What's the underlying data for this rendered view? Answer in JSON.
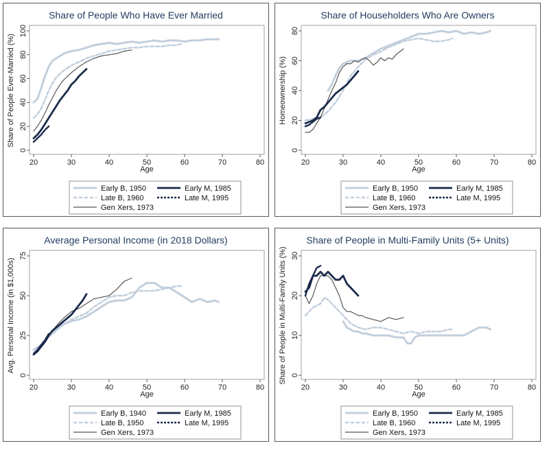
{
  "colors": {
    "light_blue": "#c2cfdc",
    "navy": "#1a2a4a",
    "dark_gray": "#555555"
  },
  "chart_data": [
    {
      "type": "line",
      "title": "Share of People Who Have Ever Married",
      "xlabel": "Age",
      "ylabel": "Share of People Ever-Married (%)",
      "xlim": [
        20,
        80
      ],
      "ylim": [
        0,
        100
      ],
      "xticks": [
        "20",
        "30",
        "40",
        "50",
        "60",
        "70",
        "80"
      ],
      "yticks": [
        "0",
        "20",
        "40",
        "60",
        "80",
        "100"
      ],
      "grid": false,
      "legend": "bottom",
      "series": [
        {
          "name": "Early B, 1950",
          "style": "thick-light",
          "x": [
            20,
            21,
            22,
            23,
            24,
            25,
            26,
            27,
            28,
            29,
            30,
            32,
            34,
            36,
            38,
            40,
            42,
            44,
            46,
            48,
            50,
            52,
            54,
            56,
            58,
            60,
            62,
            64,
            66,
            68,
            69
          ],
          "y": [
            40,
            43,
            52,
            62,
            70,
            75,
            77,
            79,
            81,
            82,
            83,
            84,
            86,
            88,
            89,
            90,
            89,
            90,
            91,
            90,
            91,
            92,
            91,
            92,
            92,
            91,
            92,
            92,
            93,
            93,
            93
          ]
        },
        {
          "name": "Late B, 1960",
          "style": "dashed-light",
          "x": [
            20,
            21,
            22,
            23,
            24,
            25,
            26,
            27,
            28,
            29,
            30,
            32,
            34,
            36,
            38,
            40,
            42,
            44,
            46,
            48,
            50,
            52,
            54,
            56,
            58,
            59
          ],
          "y": [
            27,
            30,
            35,
            42,
            50,
            56,
            61,
            64,
            67,
            69,
            71,
            74,
            77,
            79,
            81,
            83,
            84,
            85,
            86,
            86,
            87,
            87,
            87,
            88,
            88,
            89
          ]
        },
        {
          "name": "Gen Xers, 1973",
          "style": "thin-dark",
          "x": [
            20,
            21,
            22,
            23,
            24,
            25,
            26,
            27,
            28,
            29,
            30,
            32,
            34,
            36,
            38,
            40,
            42,
            44,
            46
          ],
          "y": [
            16,
            20,
            25,
            31,
            38,
            44,
            50,
            55,
            59,
            62,
            65,
            70,
            74,
            77,
            79,
            80,
            81,
            83,
            84
          ]
        },
        {
          "name": "Early M, 1985",
          "style": "thick-navy",
          "x": [
            20,
            21,
            22,
            23,
            24,
            25,
            26,
            27,
            28,
            29,
            30,
            31,
            32,
            33,
            34
          ],
          "y": [
            10,
            13,
            17,
            22,
            27,
            32,
            37,
            42,
            46,
            50,
            55,
            58,
            62,
            65,
            68
          ]
        },
        {
          "name": "Late M, 1995",
          "style": "dashed-navy",
          "x": [
            20,
            21,
            22,
            23,
            24
          ],
          "y": [
            7,
            10,
            13,
            17,
            20
          ]
        }
      ]
    },
    {
      "type": "line",
      "title": "Share of Householders Who Are Owners",
      "xlabel": "Age",
      "ylabel": "Homeownership (%)",
      "xlim": [
        20,
        80
      ],
      "ylim": [
        0,
        80
      ],
      "xticks": [
        "20",
        "30",
        "40",
        "50",
        "60",
        "70",
        "80"
      ],
      "yticks": [
        "0",
        "20",
        "40",
        "60",
        "80"
      ],
      "grid": false,
      "legend": "bottom",
      "series": [
        {
          "name": "Early B, 1950",
          "style": "thick-light",
          "x": [
            26,
            27,
            28,
            29,
            30,
            31,
            32,
            34,
            36,
            38,
            40,
            42,
            44,
            46,
            48,
            50,
            52,
            54,
            56,
            58,
            60,
            62,
            64,
            66,
            68,
            69
          ],
          "y": [
            40,
            44,
            50,
            55,
            58,
            59,
            60,
            60,
            62,
            65,
            68,
            70,
            72,
            74,
            76,
            78,
            78,
            79,
            80,
            79,
            80,
            78,
            79,
            78,
            79,
            80
          ]
        },
        {
          "name": "Late B, 1960",
          "style": "dashed-light",
          "x": [
            20,
            22,
            24,
            26,
            28,
            30,
            32,
            34,
            36,
            38,
            40,
            42,
            44,
            46,
            48,
            50,
            52,
            54,
            56,
            58,
            59
          ],
          "y": [
            20,
            21,
            22,
            26,
            32,
            40,
            50,
            56,
            61,
            64,
            66,
            69,
            71,
            73,
            74,
            75,
            74,
            73,
            73,
            74,
            75
          ]
        },
        {
          "name": "Gen Xers, 1973",
          "style": "thin-dark",
          "x": [
            20,
            21,
            22,
            23,
            24,
            25,
            26,
            27,
            28,
            29,
            30,
            31,
            32,
            33,
            34,
            35,
            36,
            37,
            38,
            39,
            40,
            41,
            42,
            43,
            44,
            45,
            46
          ],
          "y": [
            12,
            12,
            14,
            18,
            22,
            28,
            34,
            40,
            45,
            52,
            56,
            58,
            58,
            60,
            59,
            61,
            62,
            60,
            57,
            59,
            62,
            60,
            62,
            61,
            64,
            66,
            68
          ]
        },
        {
          "name": "Early M, 1985",
          "style": "thick-navy",
          "x": [
            20,
            21,
            22,
            23,
            24,
            25,
            26,
            27,
            28,
            29,
            30,
            31,
            32,
            33,
            34
          ],
          "y": [
            18,
            19,
            20,
            22,
            27,
            29,
            32,
            35,
            38,
            40,
            42,
            44,
            47,
            50,
            53
          ]
        },
        {
          "name": "Late M, 1995",
          "style": "dashed-navy",
          "x": [
            20,
            21,
            22,
            23,
            24
          ],
          "y": [
            16,
            17,
            19,
            21,
            22
          ]
        }
      ]
    },
    {
      "type": "line",
      "title": "Average Personal Income (in 2018 Dollars)",
      "xlabel": "Age",
      "ylabel": "Avg. Personal Income (in $1,000s)",
      "xlim": [
        20,
        80
      ],
      "ylim": [
        0,
        75
      ],
      "xticks": [
        "20",
        "30",
        "40",
        "50",
        "60",
        "70",
        "80"
      ],
      "yticks": [
        "0",
        "25",
        "50",
        "75"
      ],
      "grid": false,
      "legend": "bottom",
      "series": [
        {
          "name": "Early B, 1940",
          "style": "thick-light",
          "x": [
            20,
            22,
            24,
            26,
            28,
            30,
            32,
            34,
            36,
            38,
            40,
            42,
            44,
            46,
            48,
            50,
            52,
            54,
            56,
            58,
            60,
            62,
            64,
            66,
            68,
            69
          ],
          "y": [
            16,
            19,
            25,
            29,
            32,
            34,
            35,
            37,
            40,
            43,
            46,
            47,
            47,
            49,
            55,
            58,
            58,
            55,
            55,
            52,
            49,
            46,
            48,
            46,
            47,
            46
          ]
        },
        {
          "name": "Late B, 1950",
          "style": "dashed-light",
          "x": [
            20,
            22,
            24,
            26,
            28,
            30,
            32,
            34,
            36,
            38,
            40,
            42,
            44,
            46,
            48,
            50,
            52,
            54,
            56,
            58,
            59
          ],
          "y": [
            14,
            18,
            24,
            28,
            32,
            35,
            37,
            39,
            43,
            46,
            49,
            50,
            50,
            52,
            53,
            53,
            53,
            54,
            55,
            56,
            56
          ]
        },
        {
          "name": "Gen Xers, 1973",
          "style": "thin-dark",
          "x": [
            20,
            22,
            24,
            26,
            28,
            30,
            32,
            34,
            36,
            38,
            40,
            42,
            44,
            46
          ],
          "y": [
            14,
            18,
            25,
            31,
            36,
            40,
            42,
            45,
            48,
            49,
            50,
            54,
            59,
            61
          ]
        },
        {
          "name": "Early M, 1985",
          "style": "thick-navy",
          "x": [
            20,
            21,
            22,
            23,
            24,
            25,
            26,
            27,
            28,
            29,
            30,
            31,
            32,
            33,
            34
          ],
          "y": [
            13,
            15,
            18,
            21,
            25,
            28,
            30,
            32,
            34,
            36,
            38,
            41,
            44,
            47,
            51
          ]
        },
        {
          "name": "Late M, 1995",
          "style": "dashed-navy",
          "x": [
            20,
            21,
            22,
            23,
            24
          ],
          "y": [
            13,
            16,
            19,
            22,
            26
          ]
        }
      ]
    },
    {
      "type": "line",
      "title": "Share of People in Multi-Family Units (5+ Units)",
      "xlabel": "Age",
      "ylabel": "Share of People in Multi-Family Units (%)",
      "xlim": [
        20,
        80
      ],
      "ylim": [
        0,
        30
      ],
      "xticks": [
        "20",
        "30",
        "40",
        "50",
        "60",
        "70",
        "80"
      ],
      "yticks": [
        "0",
        "10",
        "20",
        "30"
      ],
      "grid": false,
      "legend": "bottom",
      "series": [
        {
          "name": "Early B, 1950",
          "style": "thick-light",
          "x": [
            30,
            31,
            32,
            33,
            34,
            35,
            36,
            38,
            40,
            42,
            44,
            46,
            47,
            48,
            49,
            50,
            52,
            54,
            56,
            58,
            60,
            62,
            64,
            66,
            68,
            69
          ],
          "y": [
            13.5,
            12,
            11.5,
            11,
            11,
            10.5,
            10.5,
            10,
            10,
            10,
            9.5,
            9.5,
            8,
            8,
            9.5,
            10,
            10,
            10,
            10,
            10,
            10,
            10,
            11,
            12,
            12,
            11.5
          ]
        },
        {
          "name": "Late B, 1960",
          "style": "dashed-light",
          "x": [
            20,
            22,
            24,
            25,
            26,
            27,
            28,
            29,
            30,
            31,
            32,
            34,
            36,
            38,
            40,
            42,
            44,
            46,
            48,
            50,
            52,
            54,
            56,
            58,
            59
          ],
          "y": [
            15,
            17,
            18,
            19.5,
            19,
            18,
            17,
            16,
            15,
            14,
            13,
            12,
            11.5,
            12,
            12,
            11.5,
            11,
            10.5,
            11,
            10.5,
            11,
            11,
            11,
            11.5,
            11.5
          ]
        },
        {
          "name": "Gen Xers, 1973",
          "style": "thin-dark",
          "x": [
            20,
            21,
            22,
            23,
            24,
            25,
            26,
            27,
            28,
            29,
            30,
            31,
            32,
            33,
            34,
            35,
            36,
            38,
            40,
            42,
            44,
            46
          ],
          "y": [
            20,
            18,
            20,
            23,
            25,
            25,
            25,
            24,
            22,
            20,
            17,
            16,
            16,
            15.5,
            15,
            15,
            14.5,
            14,
            13.5,
            14.5,
            14,
            14.5
          ]
        },
        {
          "name": "Early M, 1985",
          "style": "thick-navy",
          "x": [
            20,
            21,
            22,
            23,
            24,
            25,
            26,
            27,
            28,
            29,
            30,
            31,
            32,
            33,
            34
          ],
          "y": [
            21,
            22,
            25,
            25,
            26,
            25,
            26,
            25,
            24,
            24,
            25,
            23,
            22,
            21,
            20
          ]
        },
        {
          "name": "Late M, 1995",
          "style": "dashed-navy",
          "x": [
            20,
            21,
            22,
            23,
            24
          ],
          "y": [
            20,
            23,
            25,
            27,
            27.5
          ]
        }
      ]
    }
  ]
}
